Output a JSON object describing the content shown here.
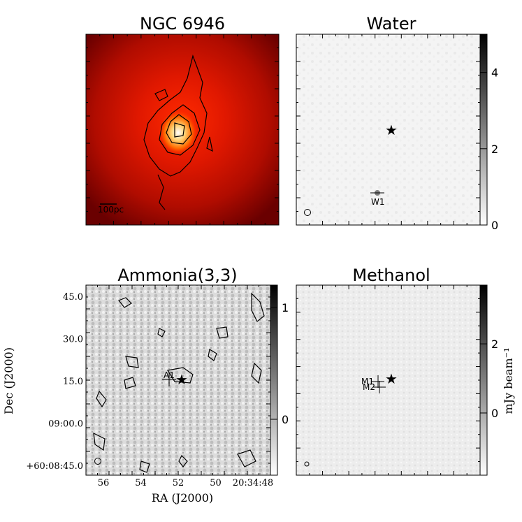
{
  "chart_data": [
    {
      "type": "heatmap",
      "title": "NGC 6946",
      "colormap": "red-hot",
      "scalebar_label": "100pc",
      "contours": true
    },
    {
      "type": "heatmap",
      "title": "Water",
      "colormap": "gray",
      "colorbar": {
        "range": [
          0,
          5
        ],
        "ticks": [
          0,
          2,
          4
        ]
      },
      "sources": [
        {
          "label": "W1"
        }
      ],
      "marker": "star"
    },
    {
      "type": "heatmap",
      "title": "Ammonia(3,3)",
      "colormap": "gray",
      "contours": true,
      "colorbar": {
        "range": [
          -0.5,
          1.2
        ],
        "ticks": [
          0,
          1
        ]
      },
      "xlabel": "RA (J2000)",
      "ylabel": "Dec (J2000)",
      "xticks": [
        "56",
        "54",
        "52",
        "50",
        "20:34:48"
      ],
      "yticks": [
        "45.0",
        "30.0",
        "15.0",
        "09:00.0",
        "+60:08:45.0"
      ],
      "sources": [
        {
          "label": "A1"
        }
      ],
      "marker": "star"
    },
    {
      "type": "heatmap",
      "title": "Methanol",
      "colormap": "gray",
      "colorbar": {
        "range": [
          -1.8,
          3.7
        ],
        "ticks": [
          0,
          2
        ],
        "label": "mJy beam⁻¹"
      },
      "sources": [
        {
          "label": "M1"
        },
        {
          "label": "M2"
        }
      ],
      "marker": "star"
    }
  ]
}
